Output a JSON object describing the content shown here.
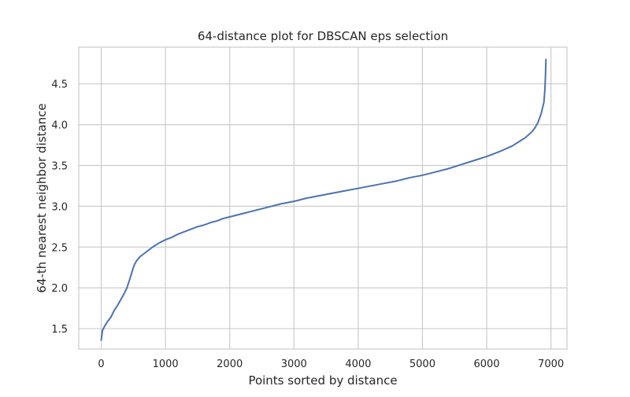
{
  "chart_data": {
    "type": "line",
    "title": "64-distance plot for DBSCAN eps selection",
    "xlabel": "Points sorted by distance",
    "ylabel": "64-th nearest neighbor distance",
    "xlim": [
      -350,
      7250
    ],
    "ylim": [
      1.25,
      4.95
    ],
    "xticks": [
      0,
      1000,
      2000,
      3000,
      4000,
      5000,
      6000,
      7000
    ],
    "xtick_labels": [
      "0",
      "1000",
      "2000",
      "3000",
      "4000",
      "5000",
      "6000",
      "7000"
    ],
    "yticks": [
      1.5,
      2.0,
      2.5,
      3.0,
      3.5,
      4.0,
      4.5
    ],
    "ytick_labels": [
      "1.5",
      "2.0",
      "2.5",
      "3.0",
      "3.5",
      "4.0",
      "4.5"
    ],
    "grid": true,
    "legend": "none",
    "colors": {
      "line": "#4c72b0",
      "grid": "#cccccc"
    },
    "series": [
      {
        "x": [
          0,
          20,
          60,
          100,
          150,
          200,
          250,
          300,
          350,
          400,
          450,
          500,
          520,
          550,
          600,
          650,
          700,
          800,
          900,
          1000,
          1100,
          1200,
          1300,
          1400,
          1500,
          1600,
          1700,
          1800,
          1900,
          2000,
          2200,
          2400,
          2600,
          2800,
          3000,
          3200,
          3400,
          3600,
          3800,
          4000,
          4200,
          4400,
          4600,
          4800,
          5000,
          5200,
          5400,
          5600,
          5800,
          6000,
          6200,
          6400,
          6500,
          6600,
          6700,
          6750,
          6800,
          6850,
          6870,
          6890,
          6905,
          6915,
          6922
        ],
        "values": [
          1.36,
          1.48,
          1.54,
          1.59,
          1.64,
          1.72,
          1.78,
          1.85,
          1.92,
          2.0,
          2.12,
          2.25,
          2.29,
          2.33,
          2.38,
          2.41,
          2.44,
          2.5,
          2.55,
          2.59,
          2.62,
          2.66,
          2.69,
          2.72,
          2.75,
          2.77,
          2.8,
          2.82,
          2.85,
          2.87,
          2.91,
          2.95,
          2.99,
          3.03,
          3.06,
          3.1,
          3.13,
          3.16,
          3.19,
          3.22,
          3.25,
          3.28,
          3.31,
          3.35,
          3.38,
          3.42,
          3.46,
          3.51,
          3.56,
          3.61,
          3.67,
          3.74,
          3.79,
          3.84,
          3.91,
          3.96,
          4.03,
          4.14,
          4.21,
          4.27,
          4.42,
          4.6,
          4.8
        ]
      }
    ]
  }
}
